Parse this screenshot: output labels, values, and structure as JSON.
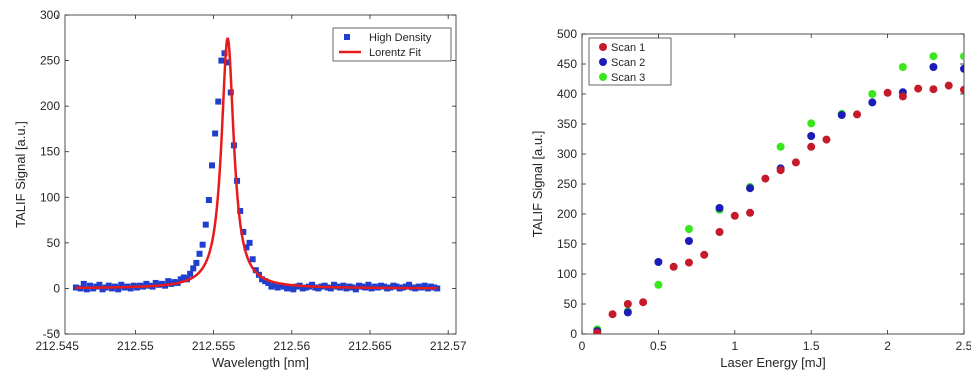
{
  "chart_data": [
    {
      "type": "scatter",
      "title": "",
      "xlabel": "Wavelength [nm]",
      "ylabel": "TALIF Signal [a.u.]",
      "xlim": [
        212.5455,
        212.5705
      ],
      "ylim": [
        -50,
        300
      ],
      "xticks": [
        212.545,
        212.55,
        212.555,
        212.56,
        212.565,
        212.57
      ],
      "xtick_labels": [
        "212.545",
        "212.55",
        "212.555",
        "212.56",
        "212.565",
        "212.57"
      ],
      "yticks": [
        -50,
        0,
        50,
        100,
        150,
        200,
        250,
        300
      ],
      "ytick_labels": [
        "-50",
        "0",
        "50",
        "100",
        "150",
        "200",
        "250",
        "300"
      ],
      "grid": false,
      "box": true,
      "legend": {
        "position": "top-right",
        "boxed": true
      },
      "series": [
        {
          "name": "High Density",
          "kind": "markers",
          "marker": "square",
          "color": "#1f3fcf",
          "points": [
            [
              212.5462,
              1
            ],
            [
              212.5465,
              0
            ],
            [
              212.5467,
              5
            ],
            [
              212.5469,
              -1
            ],
            [
              212.5471,
              3
            ],
            [
              212.5473,
              0
            ],
            [
              212.5475,
              2
            ],
            [
              212.5477,
              4
            ],
            [
              212.5479,
              -1
            ],
            [
              212.5481,
              1
            ],
            [
              212.5483,
              3
            ],
            [
              212.5485,
              0
            ],
            [
              212.5487,
              2
            ],
            [
              212.5489,
              -1
            ],
            [
              212.5491,
              4
            ],
            [
              212.5493,
              1
            ],
            [
              212.5495,
              2
            ],
            [
              212.5497,
              0
            ],
            [
              212.5499,
              3
            ],
            [
              212.5501,
              1
            ],
            [
              212.5503,
              3
            ],
            [
              212.5505,
              2
            ],
            [
              212.5507,
              5
            ],
            [
              212.5509,
              3
            ],
            [
              212.5511,
              2
            ],
            [
              212.5513,
              6
            ],
            [
              212.5515,
              4
            ],
            [
              212.5517,
              5
            ],
            [
              212.5519,
              3
            ],
            [
              212.5521,
              8
            ],
            [
              212.5523,
              5
            ],
            [
              212.5525,
              7
            ],
            [
              212.5527,
              6
            ],
            [
              212.5529,
              10
            ],
            [
              212.5531,
              12
            ],
            [
              212.5533,
              10
            ],
            [
              212.5535,
              16
            ],
            [
              212.5537,
              22
            ],
            [
              212.5539,
              28
            ],
            [
              212.5541,
              38
            ],
            [
              212.5543,
              48
            ],
            [
              212.5545,
              70
            ],
            [
              212.5547,
              97
            ],
            [
              212.5549,
              135
            ],
            [
              212.5551,
              170
            ],
            [
              212.5553,
              205
            ],
            [
              212.5555,
              250
            ],
            [
              212.5557,
              258
            ],
            [
              212.5559,
              248
            ],
            [
              212.5561,
              215
            ],
            [
              212.5563,
              157
            ],
            [
              212.5565,
              118
            ],
            [
              212.5567,
              85
            ],
            [
              212.5569,
              62
            ],
            [
              212.5571,
              45
            ],
            [
              212.5573,
              50
            ],
            [
              212.5575,
              32
            ],
            [
              212.5577,
              20
            ],
            [
              212.5579,
              15
            ],
            [
              212.5581,
              10
            ],
            [
              212.5583,
              8
            ],
            [
              212.5585,
              6
            ],
            [
              212.5587,
              2
            ],
            [
              212.5589,
              4
            ],
            [
              212.5591,
              1
            ],
            [
              212.5593,
              3
            ],
            [
              212.5595,
              2
            ],
            [
              212.5597,
              0
            ],
            [
              212.5599,
              1
            ],
            [
              212.5601,
              -1
            ],
            [
              212.5603,
              2
            ],
            [
              212.5605,
              3
            ],
            [
              212.5607,
              0
            ],
            [
              212.5609,
              1
            ],
            [
              212.5611,
              2
            ],
            [
              212.5613,
              4
            ],
            [
              212.5615,
              1
            ],
            [
              212.5617,
              0
            ],
            [
              212.5619,
              2
            ],
            [
              212.5621,
              3
            ],
            [
              212.5623,
              1
            ],
            [
              212.5625,
              0
            ],
            [
              212.5627,
              4
            ],
            [
              212.5629,
              2
            ],
            [
              212.5631,
              1
            ],
            [
              212.5633,
              3
            ],
            [
              212.5635,
              0
            ],
            [
              212.5637,
              2
            ],
            [
              212.5639,
              1
            ],
            [
              212.5641,
              -1
            ],
            [
              212.5643,
              3
            ],
            [
              212.5645,
              2
            ],
            [
              212.5647,
              1
            ],
            [
              212.5649,
              4
            ],
            [
              212.5651,
              0
            ],
            [
              212.5653,
              2
            ],
            [
              212.5655,
              1
            ],
            [
              212.5657,
              3
            ],
            [
              212.5659,
              2
            ],
            [
              212.5661,
              0
            ],
            [
              212.5663,
              1
            ],
            [
              212.5665,
              3
            ],
            [
              212.5667,
              2
            ],
            [
              212.5669,
              0
            ],
            [
              212.5671,
              1
            ],
            [
              212.5673,
              2
            ],
            [
              212.5675,
              4
            ],
            [
              212.5677,
              1
            ],
            [
              212.5679,
              0
            ],
            [
              212.5681,
              2
            ],
            [
              212.5683,
              1
            ],
            [
              212.5685,
              3
            ],
            [
              212.5687,
              0
            ],
            [
              212.5689,
              2
            ],
            [
              212.5691,
              1
            ],
            [
              212.5693,
              0
            ]
          ]
        },
        {
          "name": "Lorentz Fit",
          "kind": "line",
          "color": "#e81b1b",
          "line_width": 2.5,
          "lorentz": {
            "center": 212.5559,
            "amplitude": 275,
            "fwhm": 0.00095
          }
        }
      ]
    },
    {
      "type": "scatter",
      "title": "",
      "xlabel": "Laser Energy [mJ]",
      "ylabel": "TALIF Signal [a.u.]",
      "xlim": [
        0,
        2.5
      ],
      "ylim": [
        0,
        500
      ],
      "xticks": [
        0,
        0.5,
        1,
        1.5,
        2,
        2.5
      ],
      "xtick_labels": [
        "0",
        "0.5",
        "1",
        "1.5",
        "2",
        "2.5"
      ],
      "yticks": [
        0,
        50,
        100,
        150,
        200,
        250,
        300,
        350,
        400,
        450,
        500
      ],
      "ytick_labels": [
        "0",
        "50",
        "100",
        "150",
        "200",
        "250",
        "300",
        "350",
        "400",
        "450",
        "500"
      ],
      "grid": false,
      "box": true,
      "legend": {
        "position": "top-left",
        "boxed": true
      },
      "series": [
        {
          "name": "Scan 3",
          "kind": "markers",
          "marker": "circle",
          "color": "#39e61c",
          "points": [
            [
              0.1,
              8
            ],
            [
              0.3,
              38
            ],
            [
              0.5,
              82
            ],
            [
              0.7,
              175
            ],
            [
              0.9,
              207
            ],
            [
              1.1,
              245
            ],
            [
              1.3,
              312
            ],
            [
              1.5,
              351
            ],
            [
              1.7,
              367
            ],
            [
              1.9,
              400
            ],
            [
              2.1,
              445
            ],
            [
              2.3,
              463
            ],
            [
              2.5,
              463
            ]
          ]
        },
        {
          "name": "Scan 2",
          "kind": "markers",
          "marker": "circle",
          "color": "#1b1bb8",
          "points": [
            [
              0.1,
              5
            ],
            [
              0.3,
              36
            ],
            [
              0.5,
              120
            ],
            [
              0.7,
              155
            ],
            [
              0.9,
              210
            ],
            [
              1.1,
              243
            ],
            [
              1.3,
              276
            ],
            [
              1.5,
              330
            ],
            [
              1.7,
              365
            ],
            [
              1.9,
              386
            ],
            [
              2.1,
              403
            ],
            [
              2.3,
              445
            ],
            [
              2.5,
              442
            ]
          ]
        },
        {
          "name": "Scan 1",
          "kind": "markers",
          "marker": "circle",
          "color": "#c41a2a",
          "points": [
            [
              0.1,
              2
            ],
            [
              0.2,
              33
            ],
            [
              0.3,
              50
            ],
            [
              0.4,
              53
            ],
            [
              0.6,
              112
            ],
            [
              0.7,
              119
            ],
            [
              0.8,
              132
            ],
            [
              0.9,
              170
            ],
            [
              1.0,
              197
            ],
            [
              1.1,
              202
            ],
            [
              1.2,
              259
            ],
            [
              1.3,
              273
            ],
            [
              1.4,
              286
            ],
            [
              1.5,
              312
            ],
            [
              1.6,
              324
            ],
            [
              1.8,
              366
            ],
            [
              2.0,
              402
            ],
            [
              2.1,
              396
            ],
            [
              2.2,
              409
            ],
            [
              2.3,
              408
            ],
            [
              2.4,
              414
            ],
            [
              2.5,
              407
            ]
          ]
        }
      ],
      "legend_order": [
        "Scan 1",
        "Scan 2",
        "Scan 3"
      ]
    }
  ]
}
